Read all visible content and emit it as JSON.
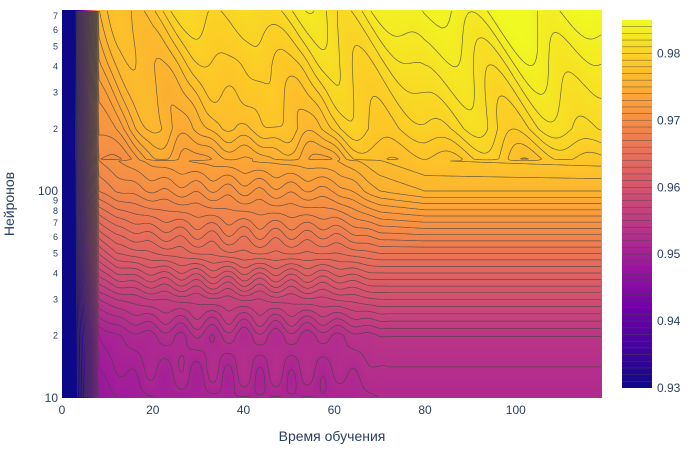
{
  "chart_data": {
    "type": "heatmap",
    "subtype": "contour",
    "title": "",
    "xlabel": "Время обучения",
    "ylabel": "Нейронов",
    "xlim": [
      0,
      119
    ],
    "ylim": [
      10,
      750
    ],
    "y_scale": "log",
    "x_ticks": [
      0,
      20,
      40,
      60,
      80,
      100
    ],
    "y_major_ticks": [
      {
        "value": 10,
        "label": "10"
      },
      {
        "value": 100,
        "label": "100"
      }
    ],
    "y_minor_ticks": [
      {
        "value": 20,
        "label": "2"
      },
      {
        "value": 30,
        "label": "3"
      },
      {
        "value": 40,
        "label": "4"
      },
      {
        "value": 50,
        "label": "5"
      },
      {
        "value": 60,
        "label": "6"
      },
      {
        "value": 70,
        "label": "7"
      },
      {
        "value": 80,
        "label": "8"
      },
      {
        "value": 90,
        "label": "9"
      },
      {
        "value": 200,
        "label": "2"
      },
      {
        "value": 300,
        "label": "3"
      },
      {
        "value": 400,
        "label": "4"
      },
      {
        "value": 500,
        "label": "5"
      },
      {
        "value": 600,
        "label": "6"
      },
      {
        "value": 700,
        "label": "7"
      }
    ],
    "z_range": [
      0.93,
      0.985
    ],
    "colorbar_ticks": [
      0.93,
      0.94,
      0.95,
      0.96,
      0.97,
      0.98
    ],
    "colorscale": [
      "#0d0887",
      "#46039f",
      "#7201a8",
      "#9c179e",
      "#bd3786",
      "#d8576b",
      "#ed7953",
      "#fb9f3a",
      "#fdca26",
      "#f0f921"
    ],
    "contour_line_color": "#444444",
    "grid": false,
    "legend": "colorbar-right",
    "surface_samples": {
      "x": [
        0,
        3,
        5,
        8,
        12,
        20,
        40,
        60,
        70,
        80,
        119
      ],
      "y": [
        10,
        20,
        30,
        50,
        100,
        200,
        400,
        750
      ],
      "z": [
        [
          0.93,
          0.93,
          0.935,
          0.948,
          0.949,
          0.95,
          0.951,
          0.951,
          0.952,
          0.952,
          0.952
        ],
        [
          0.93,
          0.93,
          0.936,
          0.95,
          0.951,
          0.952,
          0.953,
          0.953,
          0.954,
          0.954,
          0.954
        ],
        [
          0.93,
          0.93,
          0.938,
          0.954,
          0.955,
          0.956,
          0.957,
          0.958,
          0.959,
          0.959,
          0.959
        ],
        [
          0.93,
          0.93,
          0.94,
          0.96,
          0.962,
          0.963,
          0.965,
          0.965,
          0.966,
          0.966,
          0.966
        ],
        [
          0.93,
          0.93,
          0.942,
          0.968,
          0.969,
          0.97,
          0.971,
          0.972,
          0.975,
          0.976,
          0.976
        ],
        [
          0.93,
          0.93,
          0.944,
          0.972,
          0.973,
          0.975,
          0.977,
          0.978,
          0.979,
          0.98,
          0.981
        ],
        [
          0.93,
          0.93,
          0.945,
          0.974,
          0.975,
          0.977,
          0.979,
          0.98,
          0.981,
          0.982,
          0.983
        ],
        [
          0.93,
          0.93,
          0.945,
          0.975,
          0.977,
          0.979,
          0.981,
          0.982,
          0.983,
          0.984,
          0.985
        ]
      ]
    }
  }
}
